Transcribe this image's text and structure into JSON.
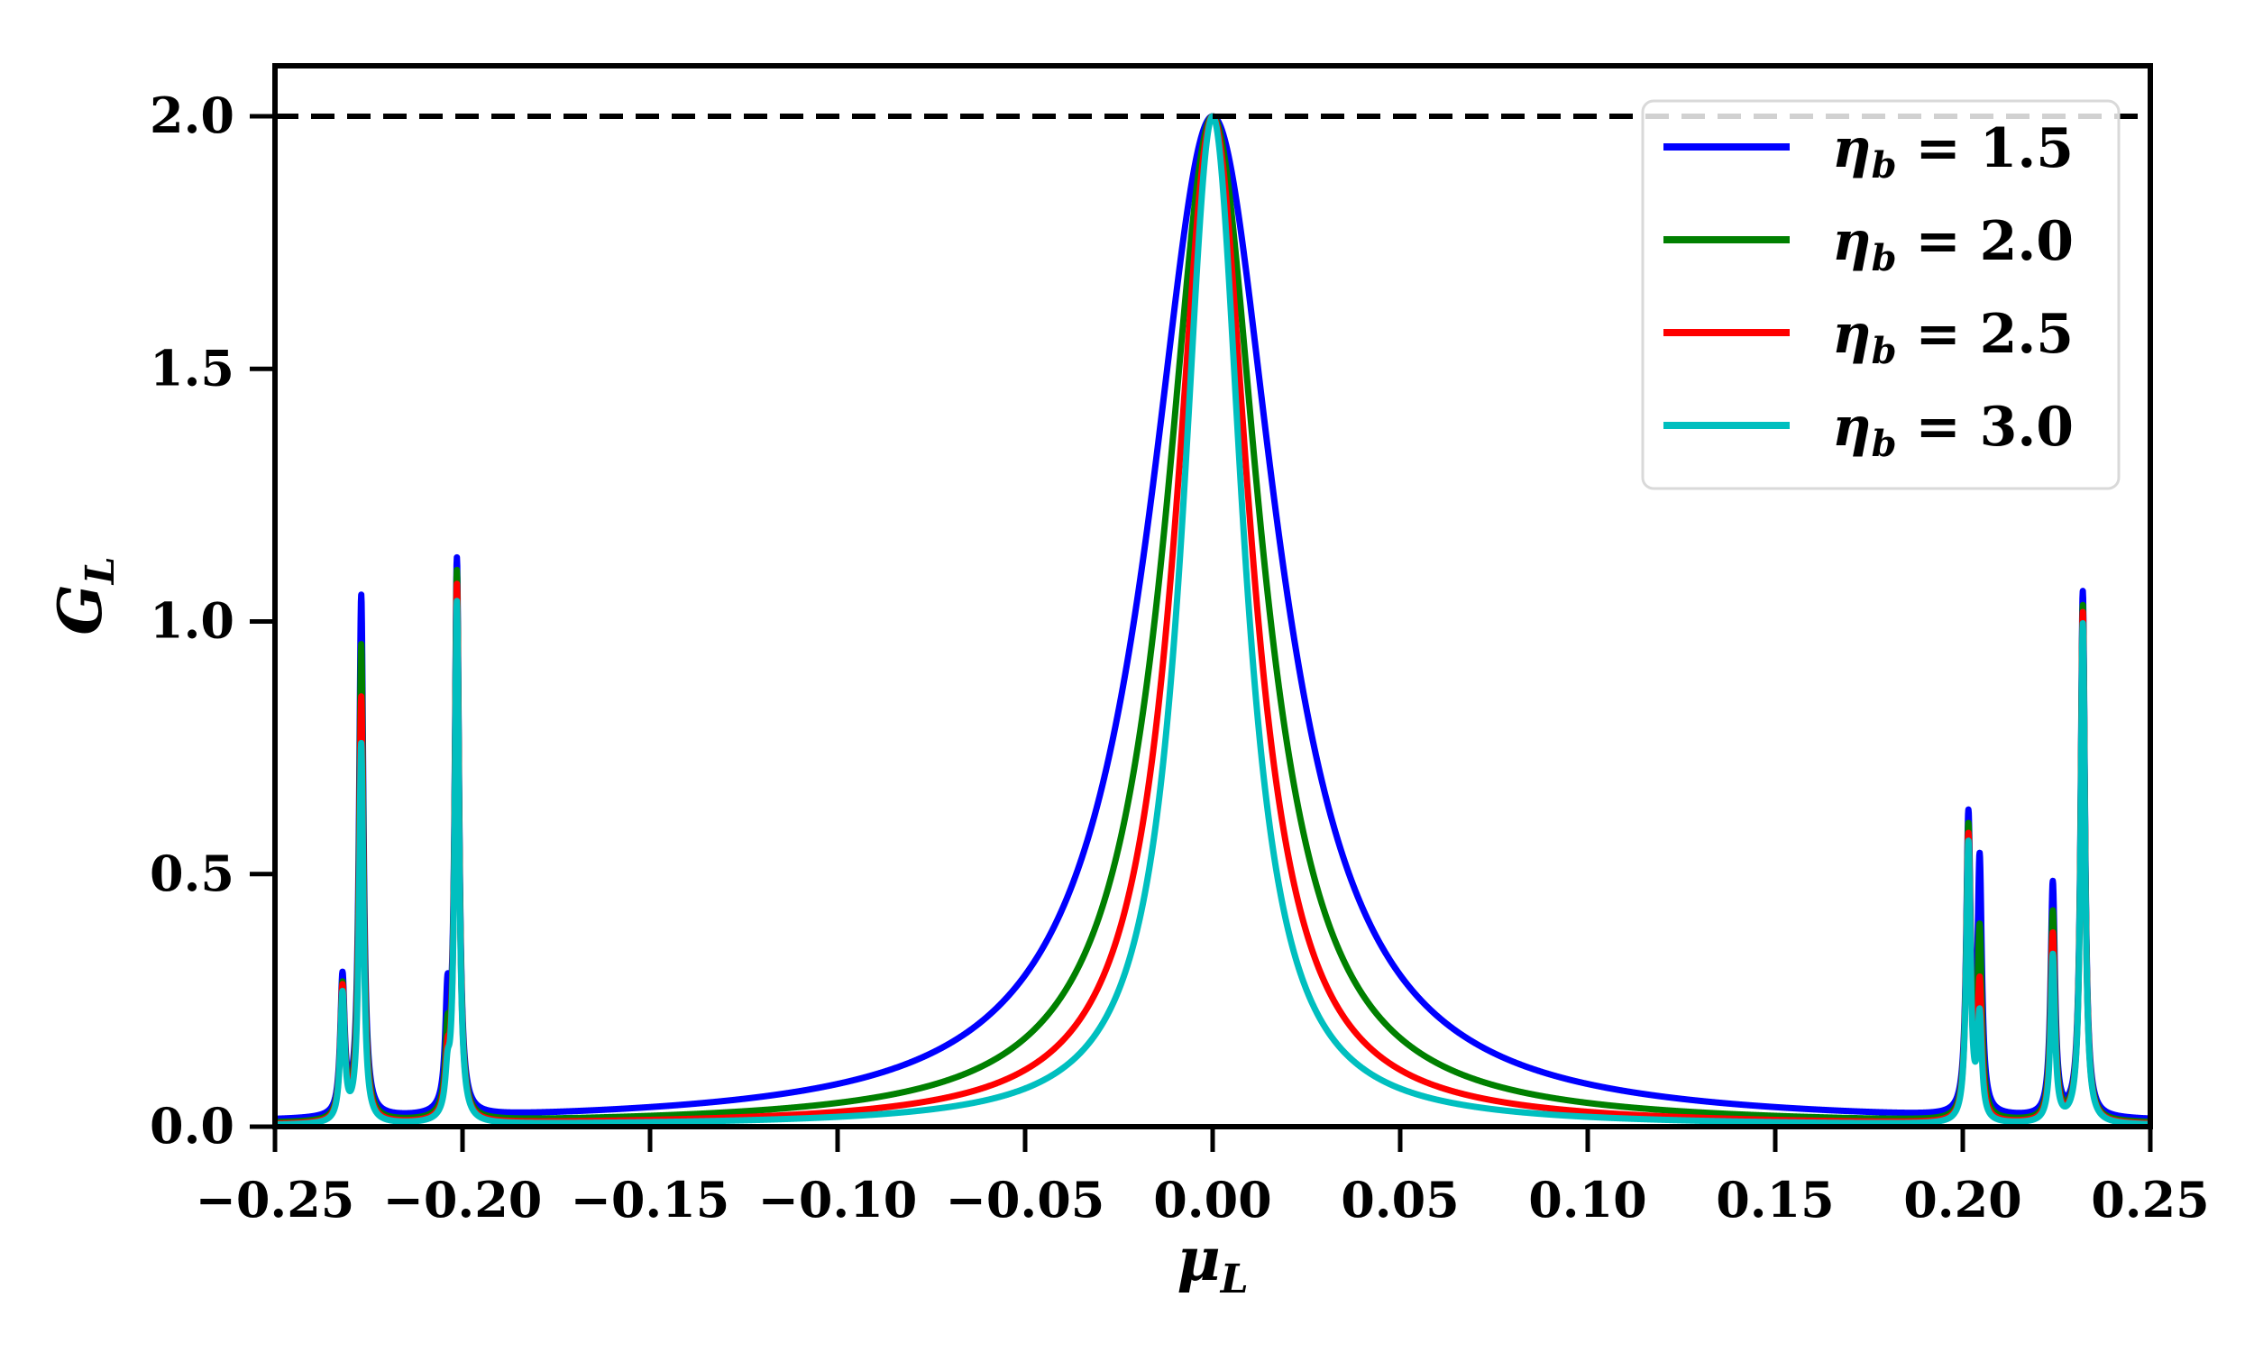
{
  "chart_data": {
    "type": "line",
    "xlabel": "μ_L",
    "ylabel": "G_L",
    "xlim": [
      -0.25,
      0.25
    ],
    "ylim": [
      0.0,
      2.1
    ],
    "xticks": [
      -0.25,
      -0.2,
      -0.15,
      -0.1,
      -0.05,
      0.0,
      0.05,
      0.1,
      0.15,
      0.2,
      0.25
    ],
    "xtick_labels": [
      "−0.25",
      "−0.20",
      "−0.15",
      "−0.10",
      "−0.05",
      "0.00",
      "0.05",
      "0.10",
      "0.15",
      "0.20",
      "0.25"
    ],
    "yticks": [
      0.0,
      0.5,
      1.0,
      1.5,
      2.0
    ],
    "ytick_labels": [
      "0.0",
      "0.5",
      "1.0",
      "1.5",
      "2.0"
    ],
    "grid": false,
    "legend_position": "top-right",
    "reference_line": {
      "y": 2.0,
      "style": "dashed",
      "color": "#000000"
    },
    "series": [
      {
        "name": "η_b = 1.5",
        "eta": 1.5,
        "color": "#0000ff",
        "central_peak_halfwidth": 0.021,
        "side_peaks": [
          {
            "x": -0.232,
            "height": 0.27
          },
          {
            "x": -0.227,
            "height": 1.03
          },
          {
            "x": -0.204,
            "height": 0.2
          },
          {
            "x": -0.2015,
            "height": 1.09
          },
          {
            "x": 0.2015,
            "height": 0.58
          },
          {
            "x": 0.2045,
            "height": 0.49
          },
          {
            "x": 0.224,
            "height": 0.46
          },
          {
            "x": 0.232,
            "height": 1.04
          }
        ]
      },
      {
        "name": "η_b = 2.0",
        "eta": 2.0,
        "color": "#008000",
        "central_peak_halfwidth": 0.0155,
        "side_peaks": [
          {
            "x": -0.232,
            "height": 0.26
          },
          {
            "x": -0.227,
            "height": 0.94
          },
          {
            "x": -0.204,
            "height": 0.13
          },
          {
            "x": -0.2015,
            "height": 1.08
          },
          {
            "x": 0.2015,
            "height": 0.57
          },
          {
            "x": 0.2045,
            "height": 0.36
          },
          {
            "x": 0.224,
            "height": 0.41
          },
          {
            "x": 0.232,
            "height": 1.02
          }
        ]
      },
      {
        "name": "η_b = 2.5",
        "eta": 2.5,
        "color": "#ff0000",
        "central_peak_halfwidth": 0.0122,
        "side_peaks": [
          {
            "x": -0.232,
            "height": 0.26
          },
          {
            "x": -0.227,
            "height": 0.84
          },
          {
            "x": -0.204,
            "height": 0.09
          },
          {
            "x": -0.2015,
            "height": 1.06
          },
          {
            "x": 0.2015,
            "height": 0.56
          },
          {
            "x": 0.2045,
            "height": 0.26
          },
          {
            "x": 0.224,
            "height": 0.37
          },
          {
            "x": 0.232,
            "height": 1.01
          }
        ]
      },
      {
        "name": "η_b = 3.0",
        "eta": 3.0,
        "color": "#00bfbf",
        "central_peak_halfwidth": 0.0099,
        "side_peaks": [
          {
            "x": -0.232,
            "height": 0.25
          },
          {
            "x": -0.227,
            "height": 0.75
          },
          {
            "x": -0.204,
            "height": 0.07
          },
          {
            "x": -0.2015,
            "height": 1.03
          },
          {
            "x": 0.2015,
            "height": 0.55
          },
          {
            "x": 0.2045,
            "height": 0.2
          },
          {
            "x": 0.224,
            "height": 0.33
          },
          {
            "x": 0.232,
            "height": 0.99
          }
        ]
      }
    ]
  }
}
